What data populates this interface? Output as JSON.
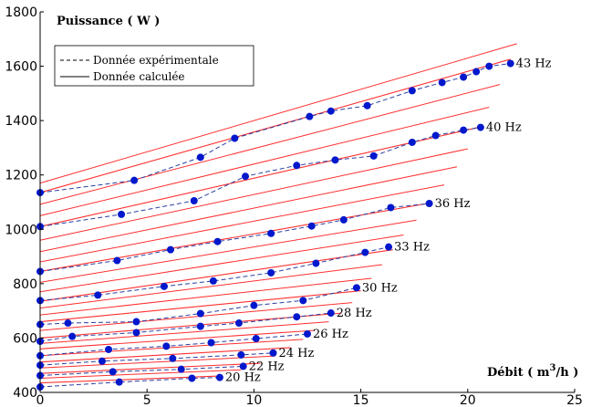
{
  "chart_data": {
    "type": "line",
    "ylabel": "Puissance ( W )",
    "xlabel_text": "Débit ( m",
    "xlabel_sup": "3",
    "xlabel_end": "/h )",
    "xlim": [
      0,
      25
    ],
    "ylim": [
      400,
      1800
    ],
    "x_ticks": [
      "0",
      "5",
      "10",
      "15",
      "20",
      "25"
    ],
    "y_ticks": [
      "400",
      "600",
      "800",
      "1000",
      "1200",
      "1400",
      "1600",
      "1800"
    ],
    "legend": [
      "Donnée expérimentale",
      "Donnée calculée"
    ],
    "colors": {
      "calculated_line": "#ff3030",
      "experimental_line": "#2a3fa0",
      "points": "#0018cc",
      "axis": "#000000"
    },
    "labeled_curves": [
      {
        "name": "20 Hz",
        "y0": 435,
        "slope": 3.0,
        "xmax": 8.5,
        "points": [
          [
            0,
            420
          ],
          [
            3.7,
            438
          ],
          [
            7.1,
            452
          ],
          [
            8.4,
            455
          ]
        ]
      },
      {
        "name": "22 Hz",
        "y0": 470,
        "slope": 3.6,
        "xmax": 10.3,
        "points": [
          [
            0,
            462
          ],
          [
            3.4,
            476
          ],
          [
            6.6,
            485
          ],
          [
            9.5,
            496
          ]
        ]
      },
      {
        "name": "24 Hz",
        "y0": 512,
        "slope": 4.5,
        "xmax": 11.7,
        "points": [
          [
            0,
            500
          ],
          [
            2.9,
            515
          ],
          [
            6.2,
            525
          ],
          [
            9.4,
            538
          ],
          [
            10.9,
            545
          ]
        ]
      },
      {
        "name": "26 Hz",
        "y0": 560,
        "slope": 5.3,
        "xmax": 12.8,
        "points": [
          [
            0,
            535
          ],
          [
            3.2,
            558
          ],
          [
            5.9,
            570
          ],
          [
            8.0,
            583
          ],
          [
            10.1,
            598
          ],
          [
            12.5,
            615
          ]
        ]
      },
      {
        "name": "28 Hz",
        "y0": 600,
        "slope": 6.5,
        "xmax": 14.1,
        "points": [
          [
            0,
            588
          ],
          [
            1.5,
            606
          ],
          [
            4.5,
            620
          ],
          [
            7.5,
            643
          ],
          [
            9.3,
            655
          ],
          [
            12.0,
            678
          ],
          [
            13.6,
            692
          ]
        ]
      },
      {
        "name": "30 Hz",
        "y0": 660,
        "slope": 7.6,
        "xmax": 15.0,
        "points": [
          [
            0,
            650
          ],
          [
            1.3,
            655
          ],
          [
            4.5,
            660
          ],
          [
            7.5,
            690
          ],
          [
            10.0,
            720
          ],
          [
            12.3,
            738
          ],
          [
            14.8,
            785
          ]
        ]
      },
      {
        "name": "33 Hz",
        "y0": 735,
        "slope": 11.5,
        "xmax": 16.5,
        "points": [
          [
            0,
            738
          ],
          [
            2.7,
            758
          ],
          [
            5.8,
            790
          ],
          [
            8.1,
            810
          ],
          [
            10.8,
            840
          ],
          [
            12.9,
            875
          ],
          [
            15.2,
            915
          ],
          [
            16.3,
            935
          ]
        ]
      },
      {
        "name": "36 Hz",
        "y0": 845,
        "slope": 13.8,
        "xmax": 18.3,
        "points": [
          [
            0,
            845
          ],
          [
            3.6,
            885
          ],
          [
            6.1,
            925
          ],
          [
            8.3,
            955
          ],
          [
            10.8,
            985
          ],
          [
            12.7,
            1012
          ],
          [
            14.2,
            1035
          ],
          [
            16.4,
            1080
          ],
          [
            18.2,
            1095
          ]
        ]
      },
      {
        "name": "40 Hz",
        "y0": 1010,
        "slope": 17.8,
        "xmax": 20.6,
        "points": [
          [
            0,
            1010
          ],
          [
            3.8,
            1055
          ],
          [
            7.2,
            1105
          ],
          [
            9.6,
            1195
          ],
          [
            12.0,
            1235
          ],
          [
            13.8,
            1255
          ],
          [
            15.6,
            1270
          ],
          [
            17.4,
            1320
          ],
          [
            18.5,
            1345
          ],
          [
            19.8,
            1365
          ],
          [
            20.6,
            1375
          ]
        ]
      },
      {
        "name": "43 Hz",
        "y0": 1135,
        "slope": 22.3,
        "xmax": 22.0,
        "points": [
          [
            0,
            1135
          ],
          [
            4.4,
            1180
          ],
          [
            7.5,
            1265
          ],
          [
            9.1,
            1335
          ],
          [
            12.6,
            1415
          ],
          [
            13.6,
            1435
          ],
          [
            15.3,
            1455
          ],
          [
            17.4,
            1510
          ],
          [
            18.8,
            1540
          ],
          [
            19.8,
            1560
          ],
          [
            20.4,
            1580
          ],
          [
            21.0,
            1600
          ],
          [
            22.0,
            1610
          ]
        ]
      }
    ],
    "unlabeled_curves": [
      {
        "y0": 452,
        "slope": 3.3,
        "xmax": 9.4
      },
      {
        "y0": 490,
        "slope": 4.0,
        "xmax": 11.0
      },
      {
        "y0": 535,
        "slope": 4.9,
        "xmax": 12.3
      },
      {
        "y0": 580,
        "slope": 5.9,
        "xmax": 13.5
      },
      {
        "y0": 628,
        "slope": 7.0,
        "xmax": 14.6
      },
      {
        "y0": 685,
        "slope": 8.7,
        "xmax": 15.5
      },
      {
        "y0": 710,
        "slope": 10.0,
        "xmax": 16.0
      },
      {
        "y0": 770,
        "slope": 12.3,
        "xmax": 17.0
      },
      {
        "y0": 805,
        "slope": 13.0,
        "xmax": 17.6
      },
      {
        "y0": 880,
        "slope": 15.0,
        "xmax": 18.9
      },
      {
        "y0": 918,
        "slope": 16.0,
        "xmax": 19.5
      },
      {
        "y0": 960,
        "slope": 16.8,
        "xmax": 20.0
      },
      {
        "y0": 1050,
        "slope": 19.0,
        "xmax": 21.0
      },
      {
        "y0": 1092,
        "slope": 20.5,
        "xmax": 21.5
      },
      {
        "y0": 1170,
        "slope": 23.0,
        "xmax": 22.3
      }
    ]
  }
}
